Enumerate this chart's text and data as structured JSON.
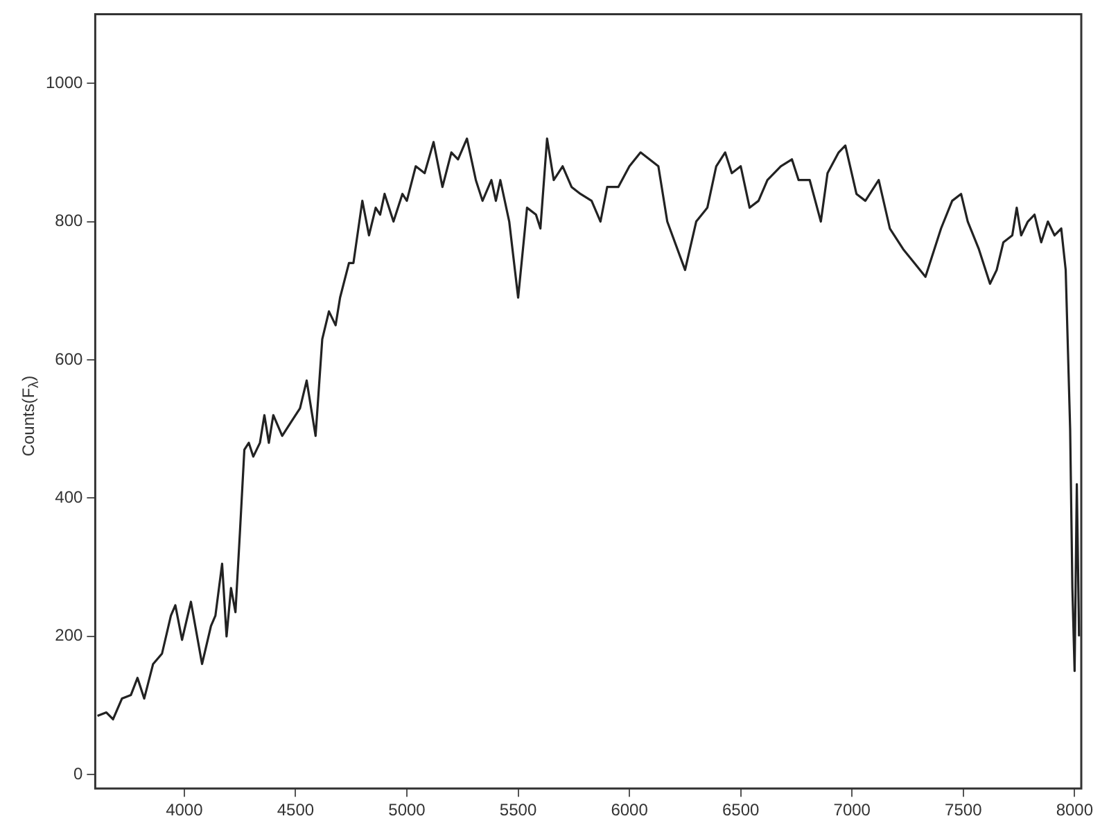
{
  "chart_data": {
    "type": "line",
    "ylabel": "Counts(F$_{λ}$)",
    "xlim": [
      3600,
      8030
    ],
    "ylim": [
      -20,
      1100
    ],
    "xticks": [
      4000,
      4500,
      5000,
      5500,
      6000,
      6500,
      7000,
      7500,
      8000
    ],
    "yticks": [
      0,
      200,
      400,
      600,
      800,
      1000
    ],
    "grid": false,
    "legend": false,
    "marker": "none",
    "line_style": "solid",
    "series": [
      {
        "color": "#222222",
        "x": [
          3610,
          3650,
          3680,
          3720,
          3760,
          3790,
          3820,
          3860,
          3900,
          3940,
          3960,
          3990,
          4030,
          4080,
          4120,
          4140,
          4170,
          4190,
          4210,
          4230,
          4250,
          4270,
          4290,
          4310,
          4340,
          4360,
          4380,
          4400,
          4440,
          4480,
          4520,
          4550,
          4590,
          4620,
          4650,
          4680,
          4700,
          4740,
          4760,
          4800,
          4830,
          4860,
          4880,
          4900,
          4940,
          4980,
          5000,
          5040,
          5080,
          5120,
          5160,
          5200,
          5230,
          5270,
          5310,
          5340,
          5380,
          5400,
          5420,
          5460,
          5500,
          5540,
          5580,
          5600,
          5630,
          5660,
          5700,
          5740,
          5780,
          5830,
          5870,
          5900,
          5950,
          6000,
          6050,
          6090,
          6130,
          6170,
          6250,
          6300,
          6350,
          6390,
          6430,
          6460,
          6500,
          6540,
          6580,
          6620,
          6680,
          6730,
          6760,
          6810,
          6860,
          6890,
          6940,
          6970,
          7020,
          7060,
          7120,
          7170,
          7230,
          7280,
          7330,
          7400,
          7450,
          7490,
          7520,
          7570,
          7620,
          7650,
          7680,
          7720,
          7740,
          7760,
          7790,
          7820,
          7850,
          7880,
          7910,
          7940,
          7960,
          7980,
          7990,
          8000,
          8010,
          8020
        ],
        "values": [
          85,
          90,
          80,
          110,
          115,
          140,
          110,
          160,
          175,
          230,
          245,
          195,
          250,
          160,
          215,
          230,
          305,
          200,
          270,
          235,
          350,
          470,
          480,
          460,
          480,
          520,
          480,
          520,
          490,
          510,
          530,
          570,
          490,
          630,
          670,
          650,
          690,
          740,
          740,
          830,
          780,
          820,
          810,
          840,
          800,
          840,
          830,
          880,
          870,
          915,
          850,
          900,
          890,
          920,
          860,
          830,
          860,
          830,
          860,
          800,
          690,
          820,
          810,
          790,
          920,
          860,
          880,
          850,
          840,
          830,
          800,
          850,
          850,
          880,
          900,
          890,
          880,
          800,
          730,
          800,
          820,
          880,
          900,
          870,
          880,
          820,
          830,
          860,
          880,
          890,
          860,
          860,
          800,
          870,
          900,
          910,
          840,
          830,
          860,
          790,
          760,
          740,
          720,
          790,
          830,
          840,
          800,
          760,
          710,
          730,
          770,
          780,
          820,
          780,
          800,
          810,
          770,
          800,
          780,
          790,
          730,
          500,
          270,
          150,
          420,
          200
        ]
      }
    ]
  }
}
